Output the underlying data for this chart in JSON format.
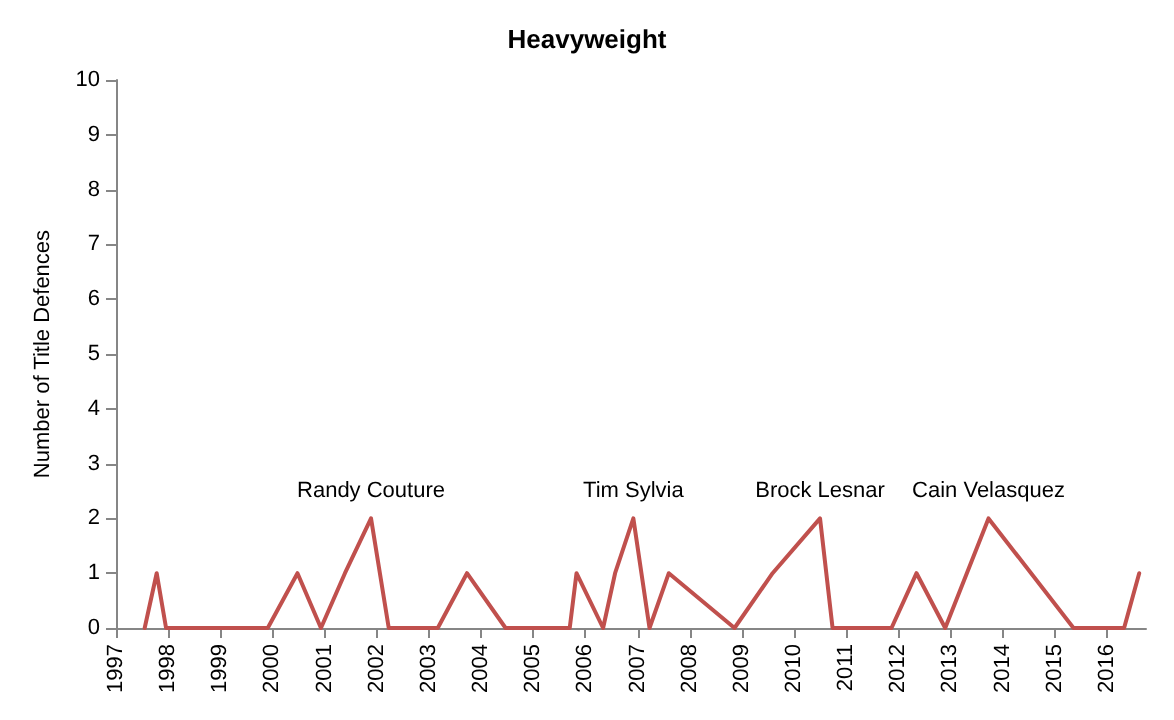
{
  "chart_data": {
    "type": "line",
    "title": "Heavyweight",
    "ylabel": "Number of Title Defences",
    "x": [
      1997.55,
      1997.78,
      1997.96,
      1999.91,
      2000.48,
      2000.93,
      2001.39,
      2001.89,
      2002.23,
      2003.17,
      2003.73,
      2004.47,
      2005.7,
      2005.83,
      2006.34,
      2006.57,
      2006.92,
      2007.23,
      2007.6,
      2008.86,
      2009.59,
      2010.5,
      2010.74,
      2011.87,
      2012.35,
      2012.9,
      2013.73,
      2015.36,
      2016.33,
      2016.62
    ],
    "series": [
      {
        "color": "#c0504d",
        "values": [
          0,
          1,
          0,
          0,
          1,
          0,
          1,
          2,
          0,
          0,
          1,
          0,
          0,
          1,
          0,
          1,
          2,
          0,
          1,
          0,
          1,
          2,
          0,
          0,
          1,
          0,
          2,
          0,
          0,
          1
        ]
      }
    ],
    "xlim": [
      1997,
      2016.75
    ],
    "xticks": [
      1997,
      1998,
      1999,
      2000,
      2001,
      2002,
      2003,
      2004,
      2005,
      2006,
      2007,
      2008,
      2009,
      2010,
      2011,
      2012,
      2013,
      2014,
      2015,
      2016
    ],
    "ylim": [
      0,
      10
    ],
    "yticks": [
      0,
      1,
      2,
      3,
      4,
      5,
      6,
      7,
      8,
      9,
      10
    ],
    "annotations": [
      {
        "text": "Randy Couture",
        "x": 2001.89,
        "y": 2
      },
      {
        "text": "Tim Sylvia",
        "x": 2006.92,
        "y": 2
      },
      {
        "text": "Brock Lesnar",
        "x": 2010.5,
        "y": 2
      },
      {
        "text": "Cain Velasquez",
        "x": 2013.73,
        "y": 2
      }
    ],
    "marker": "none",
    "line_style": "solid"
  }
}
